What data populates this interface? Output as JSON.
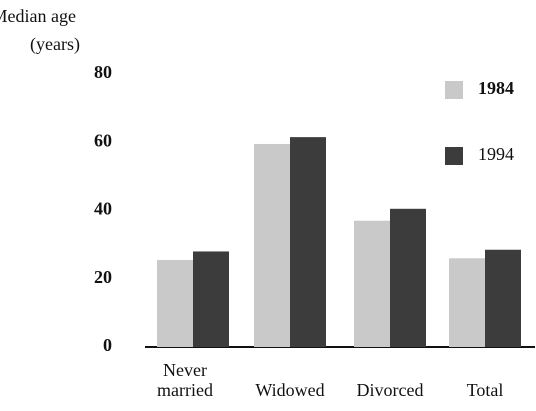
{
  "chart_data": {
    "type": "bar",
    "y_label": [
      "Median age",
      "(years)"
    ],
    "categories": [
      "Never married",
      "Widowed",
      "Divorced",
      "Total"
    ],
    "series": [
      {
        "name": "1984",
        "color": "#c9c9c9",
        "values": [
          25.5,
          59.5,
          37,
          26
        ]
      },
      {
        "name": "1994",
        "color": "#3c3c3c",
        "values": [
          28,
          61.5,
          40.5,
          28.5
        ]
      }
    ],
    "ylim": [
      0,
      80
    ],
    "yticks": [
      0,
      20,
      40,
      60,
      80
    ],
    "grid": false
  }
}
